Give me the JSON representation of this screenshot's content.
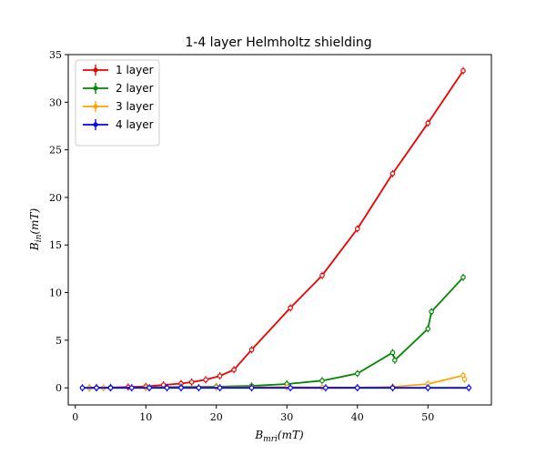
{
  "chart_data": {
    "type": "line",
    "title": "1-4 layer Helmholtz shielding",
    "xlabel": "B_{mri}(mT)",
    "ylabel": "B_{in}(mT)",
    "xlim": [
      -1,
      59
    ],
    "ylim": [
      -1.8,
      35
    ],
    "xticks": [
      0,
      10,
      20,
      30,
      40,
      50
    ],
    "yticks": [
      0,
      5,
      10,
      15,
      20,
      25,
      30,
      35
    ],
    "grid": false,
    "legend": "top-left",
    "series": [
      {
        "name": "1 layer",
        "color": "#ee0000",
        "x": [
          3.0,
          5.0,
          7.5,
          10.0,
          12.5,
          15.0,
          16.5,
          18.5,
          20.5,
          22.5,
          25.0,
          30.5,
          35.0,
          40.0,
          45.0,
          50.0,
          55.0
        ],
        "y": [
          0.02,
          0.04,
          0.08,
          0.15,
          0.3,
          0.45,
          0.6,
          0.85,
          1.25,
          1.9,
          4.0,
          8.4,
          11.8,
          16.7,
          22.5,
          27.8,
          33.3
        ]
      },
      {
        "name": "2 layer",
        "color": "#008800",
        "x": [
          2.0,
          5.0,
          10.0,
          15.0,
          20.0,
          25.0,
          30.0,
          35.0,
          40.0,
          45.0,
          45.3,
          50.0,
          50.5,
          55.0
        ],
        "y": [
          0.0,
          0.02,
          0.05,
          0.08,
          0.12,
          0.2,
          0.4,
          0.75,
          1.5,
          3.7,
          2.9,
          6.2,
          8.0,
          11.6
        ]
      },
      {
        "name": "3 layer",
        "color": "#ffa500",
        "x": [
          2.0,
          4.0,
          10.0,
          15.0,
          20.0,
          25.0,
          30.0,
          35.0,
          40.0,
          45.0,
          50.0,
          55.0,
          55.2
        ],
        "y": [
          0.0,
          0.0,
          0.02,
          0.03,
          0.05,
          0.06,
          0.08,
          0.05,
          0.03,
          0.1,
          0.4,
          1.3,
          0.9
        ]
      },
      {
        "name": "4 layer",
        "color": "#0000ff",
        "x": [
          1.0,
          3.0,
          5.0,
          8.0,
          10.5,
          13.0,
          15.0,
          17.5,
          20.5,
          25.0,
          30.5,
          35.5,
          40.0,
          45.0,
          50.0,
          55.8
        ],
        "y": [
          0.0,
          0.0,
          0.0,
          0.0,
          0.0,
          0.0,
          0.0,
          0.0,
          0.0,
          0.0,
          0.0,
          0.0,
          0.0,
          0.0,
          0.0,
          0.0
        ]
      }
    ]
  }
}
